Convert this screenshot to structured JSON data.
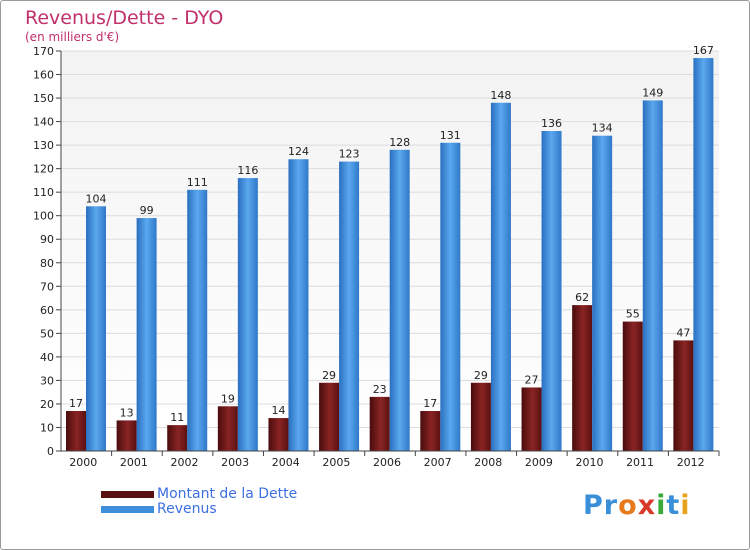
{
  "title": "Revenus/Dette - DYO",
  "subtitle": "(en milliers d'€)",
  "logo": {
    "text": "Proxiti",
    "letter_colors": [
      "#3a8fd8",
      "#3a8fd8",
      "#e87a1e",
      "#d83a2a",
      "#3aaa3a",
      "#3a8fd8",
      "#e8a21e"
    ]
  },
  "chart_data": {
    "type": "bar",
    "title": "Revenus/Dette - DYO",
    "subtitle": "(en milliers d'€)",
    "categories": [
      "2000",
      "2001",
      "2002",
      "2003",
      "2004",
      "2005",
      "2006",
      "2007",
      "2008",
      "2009",
      "2010",
      "2011",
      "2012"
    ],
    "series": [
      {
        "name": "Montant de la Dette",
        "values": [
          17,
          13,
          11,
          19,
          14,
          29,
          23,
          17,
          29,
          27,
          62,
          55,
          47
        ],
        "color": "#7a1a1a"
      },
      {
        "name": "Revenus",
        "values": [
          104,
          99,
          111,
          116,
          124,
          123,
          128,
          131,
          148,
          136,
          134,
          149,
          167
        ],
        "color": "#3d8fde"
      }
    ],
    "ylim": [
      0,
      170
    ],
    "yticks": [
      0,
      10,
      20,
      30,
      40,
      50,
      60,
      70,
      80,
      90,
      100,
      110,
      120,
      130,
      140,
      150,
      160,
      170
    ],
    "grid": true,
    "data_labels": true,
    "legend": "bottom-left"
  }
}
